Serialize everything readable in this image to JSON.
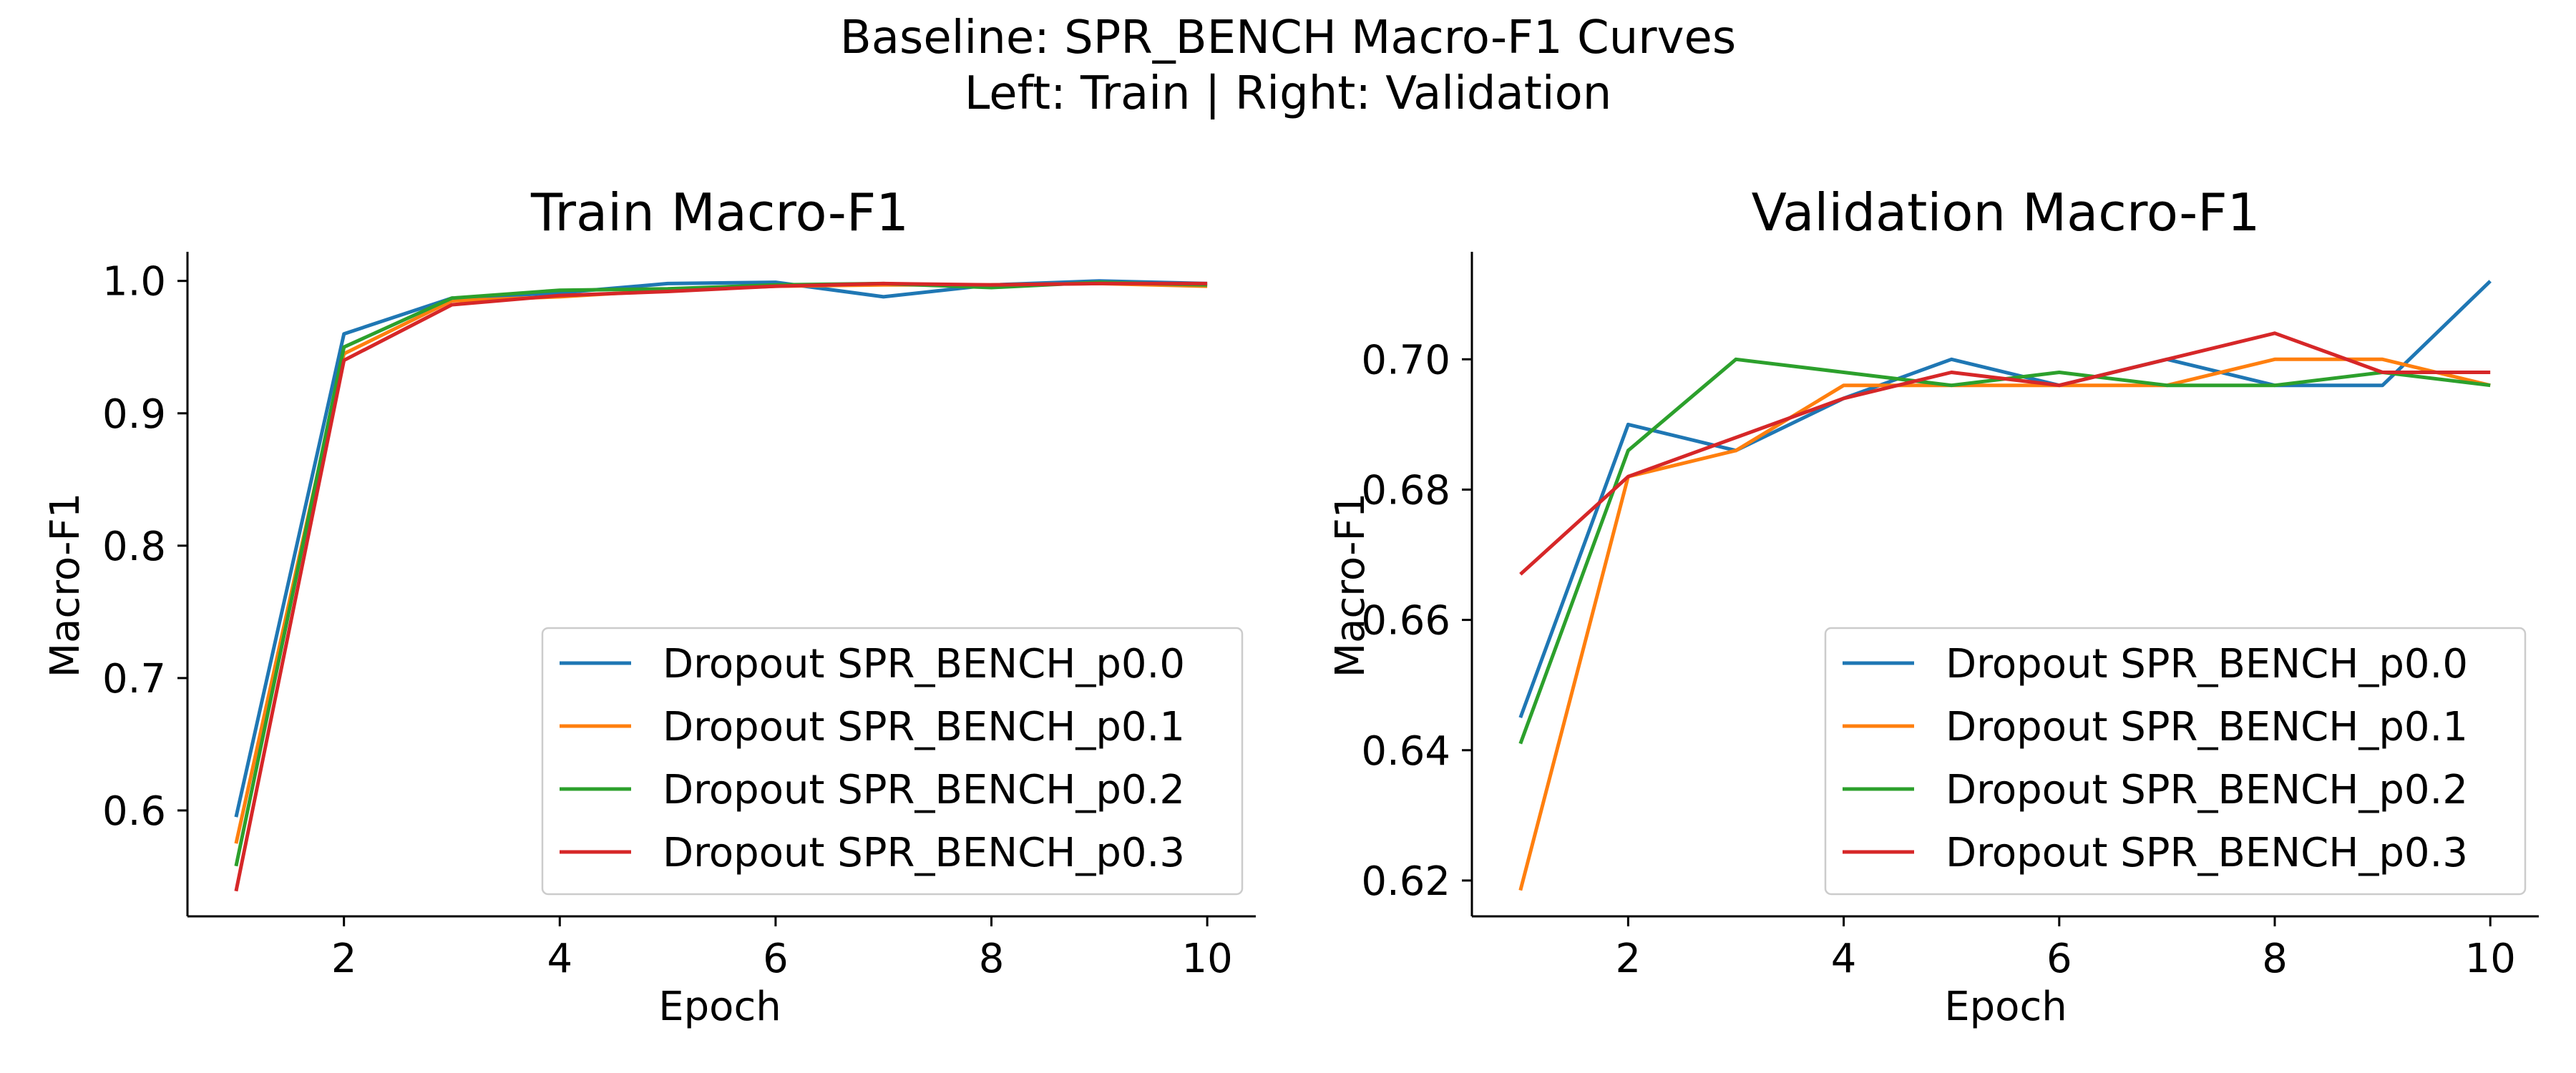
{
  "figure": {
    "suptitle_line1": "Baseline: SPR_BENCH Macro-F1 Curves",
    "suptitle_line2": "Left: Train  |  Right: Validation"
  },
  "colors": {
    "Dropout SPR_BENCH_p0.0": "#1f77b4",
    "Dropout SPR_BENCH_p0.1": "#ff7f0e",
    "Dropout SPR_BENCH_p0.2": "#2ca02c",
    "Dropout SPR_BENCH_p0.3": "#d62728"
  },
  "chart_data": [
    {
      "type": "line",
      "title": "Train Macro-F1",
      "xlabel": "Epoch",
      "ylabel": "Macro-F1",
      "xlim": [
        0.55,
        10.45
      ],
      "ylim": [
        0.52,
        1.022
      ],
      "xticks": [
        2,
        4,
        6,
        8,
        10
      ],
      "xtick_labels": [
        "2",
        "4",
        "6",
        "8",
        "10"
      ],
      "yticks": [
        0.6,
        0.7,
        0.8,
        0.9,
        1.0
      ],
      "ytick_labels": [
        "0.6",
        "0.7",
        "0.8",
        "0.9",
        "1.0"
      ],
      "grid": false,
      "legend_position": "lower right",
      "x": [
        1,
        2,
        3,
        4,
        5,
        6,
        7,
        8,
        9,
        10
      ],
      "series": [
        {
          "name": "Dropout SPR_BENCH_p0.0",
          "values": [
            0.595,
            0.96,
            0.987,
            0.991,
            0.998,
            0.999,
            0.988,
            0.997,
            1.0,
            0.998
          ]
        },
        {
          "name": "Dropout SPR_BENCH_p0.1",
          "values": [
            0.575,
            0.945,
            0.985,
            0.988,
            0.993,
            0.996,
            0.997,
            0.997,
            0.998,
            0.996
          ]
        },
        {
          "name": "Dropout SPR_BENCH_p0.2",
          "values": [
            0.558,
            0.95,
            0.987,
            0.993,
            0.994,
            0.997,
            0.998,
            0.995,
            0.999,
            0.997
          ]
        },
        {
          "name": "Dropout SPR_BENCH_p0.3",
          "values": [
            0.539,
            0.94,
            0.982,
            0.989,
            0.992,
            0.996,
            0.998,
            0.997,
            0.998,
            0.998
          ]
        }
      ]
    },
    {
      "type": "line",
      "title": "Validation Macro-F1",
      "xlabel": "Epoch",
      "ylabel": "Macro-F1",
      "xlim": [
        0.55,
        10.45
      ],
      "ylim": [
        0.6145,
        0.7165
      ],
      "xticks": [
        2,
        4,
        6,
        8,
        10
      ],
      "xtick_labels": [
        "2",
        "4",
        "6",
        "8",
        "10"
      ],
      "yticks": [
        0.62,
        0.64,
        0.66,
        0.68,
        0.7
      ],
      "ytick_labels": [
        "0.62",
        "0.64",
        "0.66",
        "0.68",
        "0.70"
      ],
      "grid": false,
      "legend_position": "lower right",
      "x": [
        1,
        2,
        3,
        4,
        5,
        6,
        7,
        8,
        9,
        10
      ],
      "series": [
        {
          "name": "Dropout SPR_BENCH_p0.0",
          "values": [
            0.645,
            0.69,
            0.686,
            0.694,
            0.7,
            0.696,
            0.7,
            0.696,
            0.696,
            0.712
          ]
        },
        {
          "name": "Dropout SPR_BENCH_p0.1",
          "values": [
            0.6185,
            0.682,
            0.686,
            0.696,
            0.696,
            0.696,
            0.696,
            0.7,
            0.7,
            0.696
          ]
        },
        {
          "name": "Dropout SPR_BENCH_p0.2",
          "values": [
            0.641,
            0.686,
            0.7,
            0.698,
            0.696,
            0.698,
            0.696,
            0.696,
            0.698,
            0.696
          ]
        },
        {
          "name": "Dropout SPR_BENCH_p0.3",
          "values": [
            0.667,
            0.682,
            0.688,
            0.694,
            0.698,
            0.696,
            0.7,
            0.704,
            0.698,
            0.698
          ]
        }
      ]
    }
  ]
}
